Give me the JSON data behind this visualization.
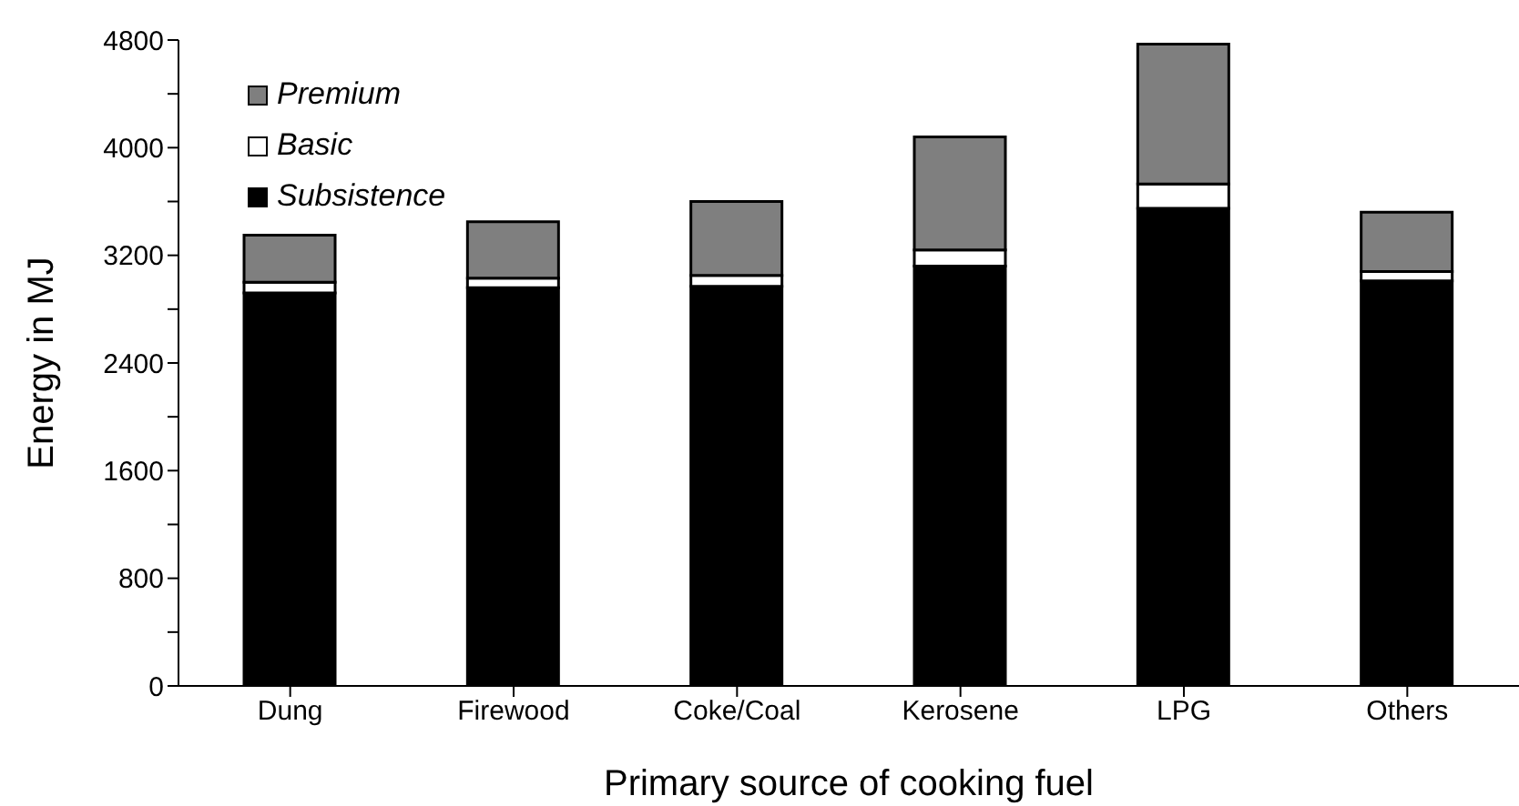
{
  "chart_data": {
    "type": "bar",
    "stacked": true,
    "xlabel": "Primary source of cooking fuel",
    "ylabel": "Energy in MJ",
    "categories": [
      "Dung",
      "Firewood",
      "Coke/Coal",
      "Kerosene",
      "LPG",
      "Others"
    ],
    "series": [
      {
        "name": "Subsistence",
        "color": "#000000",
        "values": [
          2920,
          2960,
          2970,
          3120,
          3550,
          3010
        ]
      },
      {
        "name": "Basic",
        "color": "#ffffff",
        "values": [
          80,
          70,
          80,
          120,
          180,
          70
        ]
      },
      {
        "name": "Premium",
        "color": "#7f7f7f",
        "values": [
          350,
          420,
          550,
          840,
          1040,
          440
        ]
      }
    ],
    "ylim": [
      0,
      4800
    ],
    "yticks": [
      0,
      {
        "value": 400,
        "label": null
      },
      800,
      {
        "value": 1200,
        "label": null
      },
      1600,
      {
        "value": 2000,
        "label": null
      },
      2400,
      {
        "value": 2800,
        "label": null
      },
      3200,
      {
        "value": 3600,
        "label": null
      },
      4000,
      {
        "value": 4400,
        "label": null
      },
      4800
    ],
    "grid": false,
    "legend": "top left"
  }
}
